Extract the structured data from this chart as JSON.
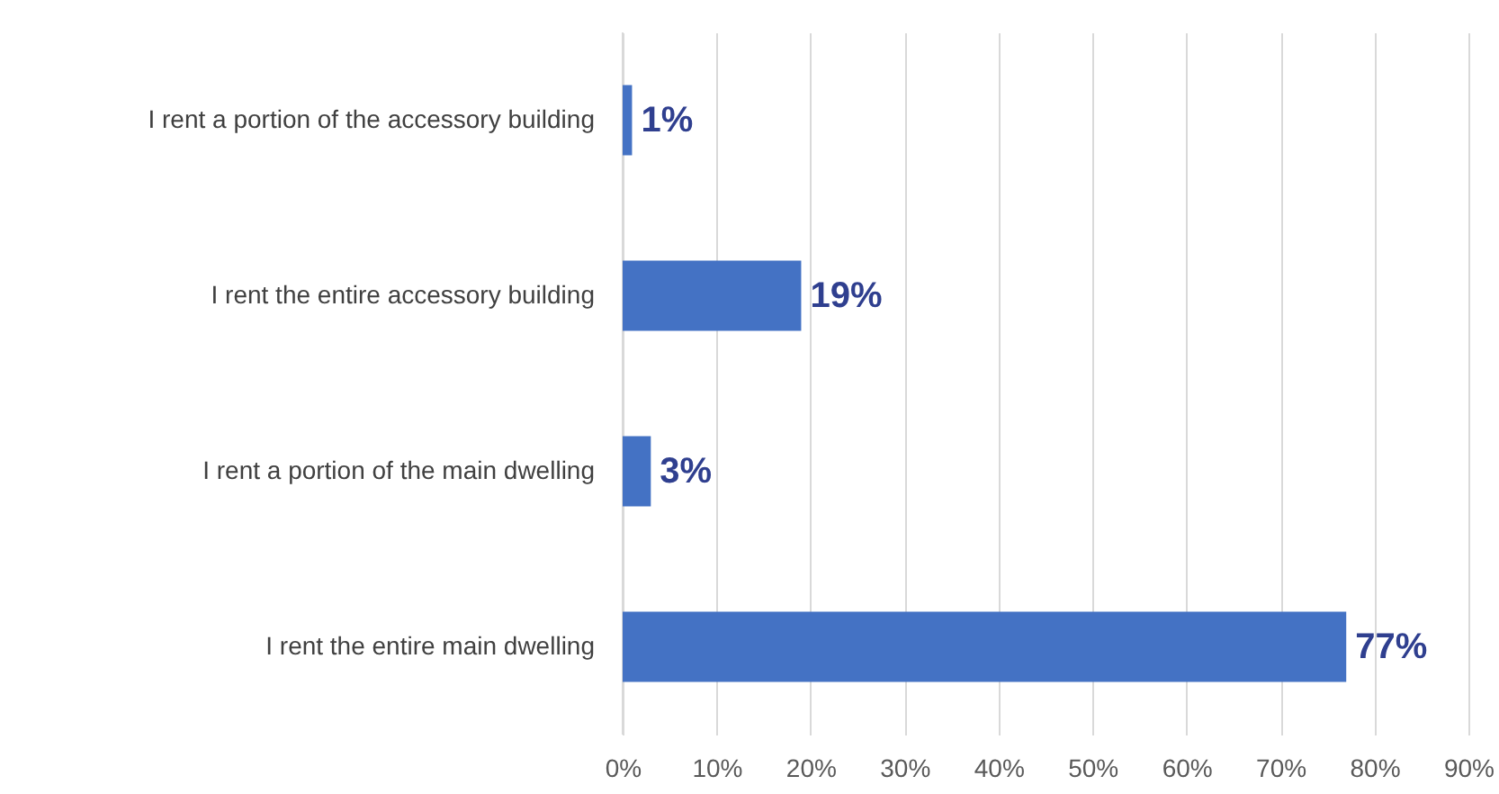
{
  "chart_data": {
    "type": "bar",
    "orientation": "horizontal",
    "categories": [
      "I rent a portion of the accessory building",
      "I rent the entire accessory building",
      "I rent a portion of the main dwelling",
      "I rent the entire main dwelling"
    ],
    "series": [
      {
        "color": "#4472c4",
        "values": [
          1,
          19,
          3,
          77
        ],
        "value_labels": [
          "1%",
          "19%",
          "3%",
          "77%"
        ]
      }
    ],
    "xlim": [
      0,
      90
    ],
    "xticks": [
      {
        "value": 0,
        "label": "0%"
      },
      {
        "value": 10,
        "label": "10%"
      },
      {
        "value": 20,
        "label": "20%"
      },
      {
        "value": 30,
        "label": "30%"
      },
      {
        "value": 40,
        "label": "40%"
      },
      {
        "value": 50,
        "label": "50%"
      },
      {
        "value": 60,
        "label": "60%"
      },
      {
        "value": 70,
        "label": "70%"
      },
      {
        "value": 80,
        "label": "80%"
      },
      {
        "value": 90,
        "label": "90%"
      }
    ],
    "grid": "x"
  }
}
